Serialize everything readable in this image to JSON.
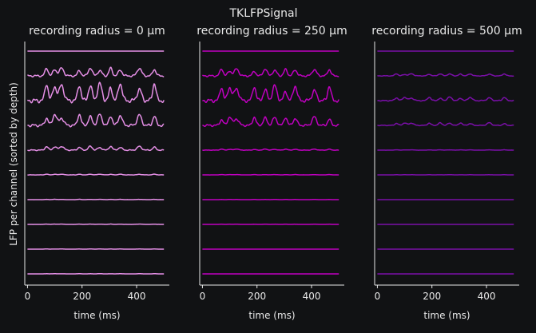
{
  "figure": {
    "title": "TKLFPSignal",
    "background": "#111214",
    "axis_color": "#e8e8e8"
  },
  "chart_data": [
    {
      "type": "line",
      "title": "recording radius = 0 µm",
      "xlabel": "time (ms)",
      "ylabel": "LFP per channel (sorted by depth)",
      "xlim": [
        -10,
        520
      ],
      "xticks": [
        0,
        200,
        400
      ],
      "color": "#e58fe6",
      "grid": false,
      "channels": 10,
      "peak_times": [
        70,
        100,
        125,
        190,
        230,
        265,
        305,
        340,
        410,
        465
      ],
      "channel_amplitudes": [
        0.0,
        0.45,
        1.0,
        0.65,
        0.22,
        0.04,
        0.02,
        0.02,
        0.01,
        0.01
      ]
    },
    {
      "type": "line",
      "title": "recording radius = 250 µm",
      "xlabel": "time (ms)",
      "ylabel": "",
      "xlim": [
        -10,
        520
      ],
      "xticks": [
        0,
        200,
        400
      ],
      "color": "#c000c0",
      "grid": false,
      "channels": 10,
      "peak_times": [
        70,
        100,
        125,
        190,
        230,
        265,
        305,
        340,
        410,
        465
      ],
      "channel_amplitudes": [
        0.0,
        0.4,
        0.85,
        0.5,
        0.06,
        0.02,
        0.01,
        0.01,
        0.0,
        0.0
      ]
    },
    {
      "type": "line",
      "title": "recording radius = 500 µm",
      "xlabel": "time (ms)",
      "ylabel": "",
      "xlim": [
        -10,
        520
      ],
      "xticks": [
        0,
        200,
        400
      ],
      "color": "#7a0fa8",
      "grid": false,
      "channels": 10,
      "peak_times": [
        70,
        100,
        125,
        190,
        230,
        265,
        305,
        340,
        410,
        465
      ],
      "channel_amplitudes": [
        0.0,
        0.12,
        0.2,
        0.15,
        0.02,
        0.01,
        0.0,
        0.0,
        0.0,
        0.0
      ]
    }
  ]
}
